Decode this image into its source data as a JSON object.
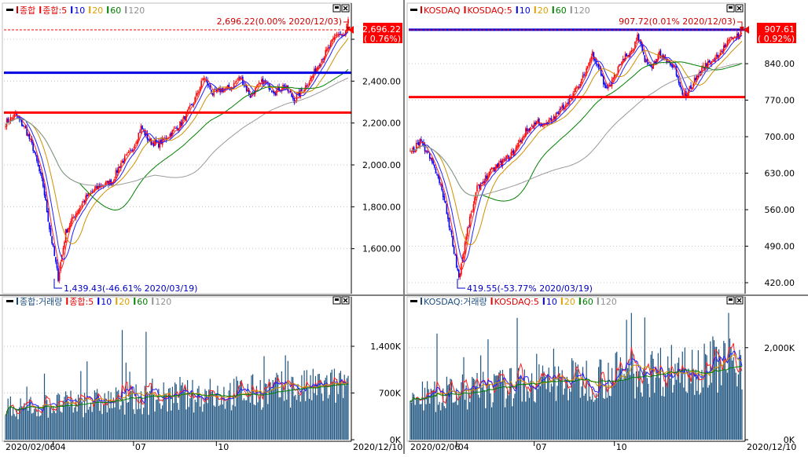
{
  "panels": [
    {
      "price": {
        "legend": [
          {
            "text": "종합",
            "color": "#e00000"
          },
          {
            "text": "종합:5",
            "color": "#e00000"
          },
          {
            "text": "10",
            "color": "#0000dd"
          },
          {
            "text": "20",
            "color": "#e0a000"
          },
          {
            "text": "60",
            "color": "#008000"
          },
          {
            "text": "120",
            "color": "#909090"
          }
        ],
        "yticks": [
          "2,600.00",
          "2,400.00",
          "2,200.00",
          "2,000.00",
          "1,800.00",
          "1,600.00"
        ],
        "current_value": "2,696.22",
        "current_change": "( 0.76%)",
        "high_annotation": "2,696.22(0.00% 2020/12/03)",
        "low_annotation": "1,439.43(-46.61% 2020/03/19)"
      },
      "volume": {
        "legend": [
          {
            "text": "종합:거래량",
            "color": "#1a4c80"
          },
          {
            "text": "종합:5",
            "color": "#e00000"
          },
          {
            "text": "10",
            "color": "#0000dd"
          },
          {
            "text": "20",
            "color": "#e0a000"
          },
          {
            "text": "60",
            "color": "#008000"
          },
          {
            "text": "120",
            "color": "#909090"
          }
        ],
        "yticks": [
          "1,400K",
          "700K",
          "0K"
        ]
      },
      "xaxis": {
        "start": "2020/02/06",
        "labels": [
          "04",
          "07",
          "10"
        ],
        "end": "2020/12/10"
      }
    },
    {
      "price": {
        "legend": [
          {
            "text": "KOSDAQ",
            "color": "#e00000"
          },
          {
            "text": "KOSDAQ:5",
            "color": "#e00000"
          },
          {
            "text": "10",
            "color": "#0000dd"
          },
          {
            "text": "20",
            "color": "#e0a000"
          },
          {
            "text": "60",
            "color": "#008000"
          },
          {
            "text": "120",
            "color": "#909090"
          }
        ],
        "yticks": [
          "840.00",
          "770.00",
          "700.00",
          "630.00",
          "560.00",
          "490.00",
          "420.00"
        ],
        "current_value": "907.61",
        "current_change": "( 0.92%)",
        "high_annotation": "907.72(0.01% 2020/12/03)",
        "low_annotation": "419.55(-53.77% 2020/03/19)"
      },
      "volume": {
        "legend": [
          {
            "text": "KOSDAQ:거래량",
            "color": "#1a4c80"
          },
          {
            "text": "KOSDAQ:5",
            "color": "#e00000"
          },
          {
            "text": "10",
            "color": "#0000dd"
          },
          {
            "text": "20",
            "color": "#e0a000"
          },
          {
            "text": "60",
            "color": "#008000"
          },
          {
            "text": "120",
            "color": "#909090"
          }
        ],
        "yticks": [
          "2,000K",
          "0K"
        ]
      },
      "xaxis": {
        "start": "2020/02/06",
        "labels": [
          "04",
          "07",
          "10"
        ],
        "end": "2020/12/10"
      }
    }
  ],
  "chart_data": [
    {
      "type": "candlestick",
      "name": "종합",
      "ylim": [
        1400,
        2720
      ],
      "start_date": "2020/02/06",
      "high": {
        "value": 2696.22,
        "date": "2020/12/03"
      },
      "low": {
        "value": 1439.43,
        "date": "2020/03/19"
      },
      "close_anchors": [
        [
          0,
          2200
        ],
        [
          8,
          2240
        ],
        [
          16,
          2170
        ],
        [
          22,
          2080
        ],
        [
          30,
          1900
        ],
        [
          35,
          1700
        ],
        [
          42,
          1460
        ],
        [
          48,
          1680
        ],
        [
          55,
          1760
        ],
        [
          65,
          1850
        ],
        [
          75,
          1900
        ],
        [
          85,
          1920
        ],
        [
          92,
          2010
        ],
        [
          100,
          2060
        ],
        [
          108,
          2180
        ],
        [
          115,
          2110
        ],
        [
          122,
          2100
        ],
        [
          130,
          2140
        ],
        [
          140,
          2200
        ],
        [
          150,
          2300
        ],
        [
          158,
          2420
        ],
        [
          165,
          2340
        ],
        [
          172,
          2360
        ],
        [
          180,
          2370
        ],
        [
          187,
          2420
        ],
        [
          195,
          2330
        ],
        [
          205,
          2400
        ],
        [
          215,
          2350
        ],
        [
          222,
          2380
        ],
        [
          230,
          2310
        ],
        [
          237,
          2360
        ],
        [
          244,
          2420
        ],
        [
          251,
          2500
        ],
        [
          258,
          2560
        ],
        [
          264,
          2630
        ],
        [
          270,
          2610
        ],
        [
          273,
          2696
        ]
      ],
      "horizontal_lines": [
        {
          "value": 2440,
          "color": "#0000e0"
        },
        {
          "value": 2250,
          "color": "#ff0000"
        }
      ]
    },
    {
      "type": "candlestick",
      "name": "KOSDAQ",
      "ylim": [
        405,
        935
      ],
      "start_date": "2020/02/06",
      "high": {
        "value": 907.72,
        "date": "2020/12/03"
      },
      "low": {
        "value": 419.55,
        "date": "2020/03/19"
      },
      "close_anchors": [
        [
          0,
          668
        ],
        [
          8,
          690
        ],
        [
          14,
          670
        ],
        [
          20,
          640
        ],
        [
          27,
          590
        ],
        [
          33,
          520
        ],
        [
          40,
          430
        ],
        [
          47,
          520
        ],
        [
          55,
          600
        ],
        [
          65,
          630
        ],
        [
          75,
          650
        ],
        [
          85,
          670
        ],
        [
          95,
          710
        ],
        [
          105,
          730
        ],
        [
          110,
          720
        ],
        [
          120,
          740
        ],
        [
          130,
          770
        ],
        [
          140,
          800
        ],
        [
          150,
          860
        ],
        [
          156,
          830
        ],
        [
          160,
          795
        ],
        [
          165,
          800
        ],
        [
          175,
          850
        ],
        [
          182,
          860
        ],
        [
          187,
          890
        ],
        [
          193,
          850
        ],
        [
          198,
          830
        ],
        [
          205,
          860
        ],
        [
          212,
          840
        ],
        [
          218,
          830
        ],
        [
          222,
          790
        ],
        [
          227,
          780
        ],
        [
          232,
          800
        ],
        [
          240,
          830
        ],
        [
          250,
          850
        ],
        [
          258,
          870
        ],
        [
          265,
          890
        ],
        [
          270,
          895
        ],
        [
          273,
          907
        ]
      ],
      "horizontal_lines": [
        {
          "value": 905,
          "color": "#0000e0"
        },
        {
          "value": 776,
          "color": "#ff0000"
        }
      ]
    }
  ]
}
